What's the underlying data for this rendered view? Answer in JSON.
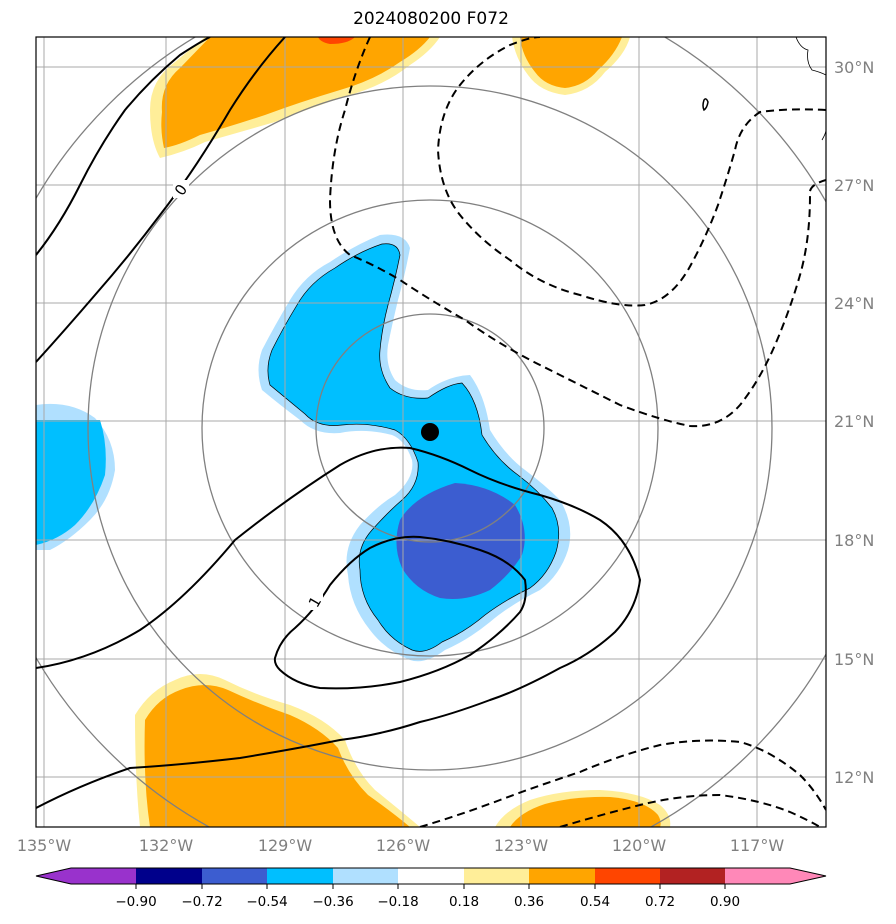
{
  "title": "2024080200 F072",
  "map": {
    "lat_labels": [
      "30°N",
      "27°N",
      "24°N",
      "21°N",
      "18°N",
      "15°N",
      "12°N"
    ],
    "lon_labels": [
      "135°W",
      "132°W",
      "129°W",
      "126°W",
      "123°W",
      "120°W",
      "117°W"
    ],
    "contour_labels": [
      "0",
      "1",
      "0"
    ],
    "colors": {
      "fill_light_yellow": "#ffee99",
      "fill_orange": "#ffa500",
      "fill_red": "#ff4500",
      "fill_light_blue": "#b0e0ff",
      "fill_cyan": "#00bfff",
      "fill_royal_blue": "#3c5dd0",
      "grid": "#a9a9a9",
      "range_rings": "#808080"
    },
    "storm_center": {
      "lat": 20.8,
      "lon": -125.7
    }
  },
  "colorbar": {
    "labels": [
      "−0.90",
      "−0.72",
      "−0.54",
      "−0.36",
      "−0.18",
      "0.18",
      "0.36",
      "0.54",
      "0.72",
      "0.90"
    ],
    "colors": [
      "#9932cc",
      "#00008b",
      "#3c5dd0",
      "#00bfff",
      "#b0e0ff",
      "#ffffff",
      "#ffee99",
      "#ffa500",
      "#ff4500",
      "#b22222",
      "#ff88b8"
    ]
  }
}
